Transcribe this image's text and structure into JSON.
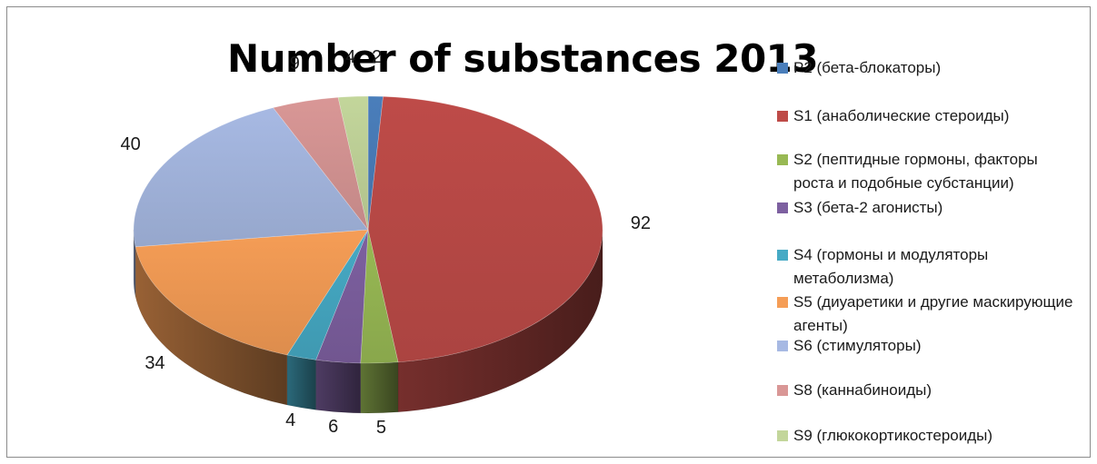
{
  "chart_data": {
    "type": "pie",
    "title": "Number of substances 2013",
    "categories": [
      "P2 (бета-блокаторы)",
      "S1 (анаболические стероиды)",
      "S2 (пептидные гормоны, факторы роста и подобные субстанции)",
      "S3 (бета-2 агонисты)",
      "S4 (гормоны и модуляторы метаболизма)",
      "S5  (диуаретики и другие маскирующие агенты)",
      "S6 (стимуляторы)",
      "S8 (каннабиноиды)",
      "S9 (глюкокортикостероиды)"
    ],
    "values": [
      2,
      92,
      5,
      6,
      4,
      34,
      40,
      9,
      4
    ],
    "colors": [
      "#4a7ebb",
      "#be4b48",
      "#98b954",
      "#7d60a0",
      "#46aac5",
      "#f59d56",
      "#a7b9e3",
      "#d99796",
      "#c3d69b"
    ],
    "legend_position": "right",
    "style": "3d-pie"
  }
}
